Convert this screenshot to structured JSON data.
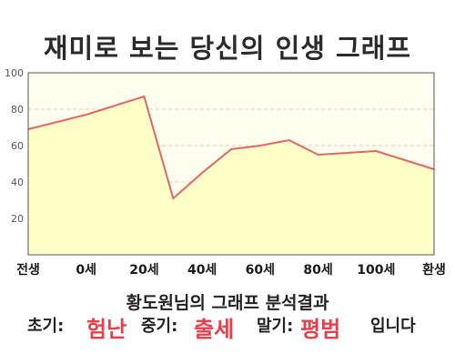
{
  "chart_title": "재미로 보는 당신의 인생 그래프",
  "chart_data": {
    "type": "area",
    "x_labels": [
      "전생",
      "0세",
      "20세",
      "40세",
      "60세",
      "80세",
      "100세",
      "환생"
    ],
    "points": [
      {
        "x": -20,
        "y": 69
      },
      {
        "x": 0,
        "y": 77
      },
      {
        "x": 20,
        "y": 87
      },
      {
        "x": 30,
        "y": 31
      },
      {
        "x": 40,
        "y": 45
      },
      {
        "x": 50,
        "y": 58
      },
      {
        "x": 60,
        "y": 60
      },
      {
        "x": 70,
        "y": 63
      },
      {
        "x": 80,
        "y": 55
      },
      {
        "x": 100,
        "y": 57
      },
      {
        "x": 120,
        "y": 47
      }
    ],
    "ylim": [
      0,
      100
    ],
    "y_ticks": [
      20,
      40,
      60,
      80,
      100
    ],
    "grid": true,
    "colors": {
      "line": "#e06666",
      "fill": "#ffffc8",
      "grid": "#e6c7b8",
      "plot_bg": "#fffff0"
    }
  },
  "summary": {
    "name": "황도원님의",
    "rest": "그래프 분석결과"
  },
  "result": {
    "early_label": "초기:",
    "early_value": "험난",
    "middle_label": "중기:",
    "middle_value": "출세",
    "late_label": "말기:",
    "late_value": "평범",
    "ending": "입니다"
  }
}
